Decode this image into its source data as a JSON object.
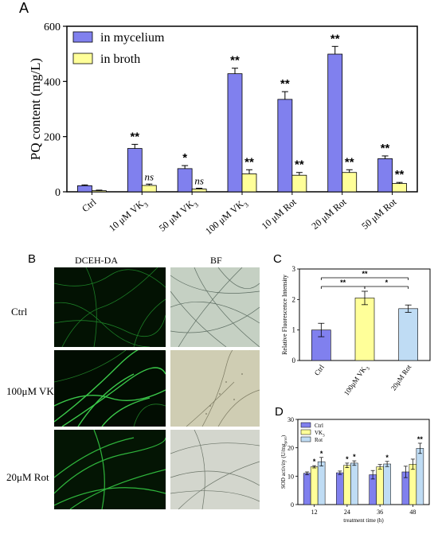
{
  "colors": {
    "mycelium": "#8080ee",
    "broth": "#ffff99",
    "vk3_bar": "#ffff99",
    "rot_bar": "#bfdcf4",
    "ctrl_bar": "#8080ee"
  },
  "panels": {
    "A": "A",
    "B": "B",
    "C": "C",
    "D": "D"
  },
  "panel_b": {
    "col_headers": [
      "DCEH-DA",
      "BF"
    ],
    "row_labels": [
      {
        "main": "Ctrl",
        "sub": ""
      },
      {
        "main": "100μM VK",
        "sub": "3"
      },
      {
        "main": "20μM Rot",
        "sub": ""
      }
    ]
  },
  "chart_data": [
    {
      "id": "A",
      "type": "bar",
      "ylabel": "PQ content (mg/L)",
      "ylim": [
        0,
        600
      ],
      "yticks": [
        "0",
        "200",
        "400",
        "600"
      ],
      "categories": [
        {
          "main": "Ctrl",
          "sub": ""
        },
        {
          "main": "10 μM VK",
          "sub": "3"
        },
        {
          "main": "50 μM VK",
          "sub": "3"
        },
        {
          "main": "100 μM VK",
          "sub": "3"
        },
        {
          "main": "10 μM Rot",
          "sub": ""
        },
        {
          "main": "20 μM Rot",
          "sub": ""
        },
        {
          "main": "50 μM Rot",
          "sub": ""
        }
      ],
      "series": [
        {
          "name": "in mycelium",
          "values": [
            22,
            157,
            84,
            428,
            335,
            499,
            120
          ],
          "errors": [
            3,
            15,
            11,
            20,
            28,
            28,
            10
          ],
          "marks": [
            "",
            "**",
            "*",
            "**",
            "**",
            "**",
            "**"
          ],
          "italic": [
            false,
            false,
            false,
            false,
            false,
            false,
            false
          ]
        },
        {
          "name": "in broth",
          "values": [
            4,
            23,
            10,
            65,
            60,
            70,
            30
          ],
          "errors": [
            2,
            5,
            3,
            15,
            10,
            10,
            4
          ],
          "marks": [
            "",
            "ns",
            "ns",
            "**",
            "**",
            "**",
            "**"
          ],
          "italic": [
            false,
            true,
            true,
            false,
            false,
            false,
            false
          ]
        }
      ],
      "legend_position": "top-left"
    },
    {
      "id": "C",
      "type": "bar",
      "ylabel": "Relative Fluorescence Intensity",
      "ylim": [
        0,
        3
      ],
      "yticks": [
        "0",
        "1",
        "2",
        "3"
      ],
      "categories": [
        {
          "main": "Ctrl",
          "sub": ""
        },
        {
          "main": "100μM VK",
          "sub": "3"
        },
        {
          "main": "20μM Rot",
          "sub": ""
        }
      ],
      "values": [
        1.0,
        2.05,
        1.7
      ],
      "errors": [
        0.22,
        0.22,
        0.12
      ],
      "brackets": [
        {
          "from": 0,
          "to": 2,
          "label": "**"
        },
        {
          "from": 0,
          "to": 1,
          "label": "**"
        },
        {
          "from": 1,
          "to": 2,
          "label": "*"
        }
      ]
    },
    {
      "id": "D",
      "type": "bar",
      "ylabel_main": "SOD activity (U/mg",
      "ylabel_sub": "prot",
      "ylabel_end": ")",
      "xlabel": "treatment time (h)",
      "ylim": [
        0,
        30
      ],
      "yticks": [
        "0",
        "10",
        "20",
        "30"
      ],
      "categories": [
        "12",
        "24",
        "36",
        "48"
      ],
      "series": [
        {
          "name": "Ctrl",
          "sub": "",
          "values": [
            11,
            11.2,
            10.5,
            11.5
          ],
          "errors": [
            0.5,
            0.6,
            1.5,
            2.0
          ],
          "marks": [
            "",
            "",
            "",
            ""
          ]
        },
        {
          "name": "VK",
          "sub": "3",
          "values": [
            13.3,
            13.8,
            13.3,
            14.2
          ],
          "errors": [
            0.4,
            0.8,
            0.8,
            1.8
          ],
          "marks": [
            "*",
            "*",
            "",
            ""
          ]
        },
        {
          "name": "Rot",
          "sub": "",
          "values": [
            15.1,
            14.6,
            14.3,
            19.8
          ],
          "errors": [
            1.5,
            0.8,
            0.9,
            1.8
          ],
          "marks": [
            "*",
            "*",
            "*",
            "**"
          ]
        }
      ],
      "legend_position": "top-left"
    }
  ]
}
